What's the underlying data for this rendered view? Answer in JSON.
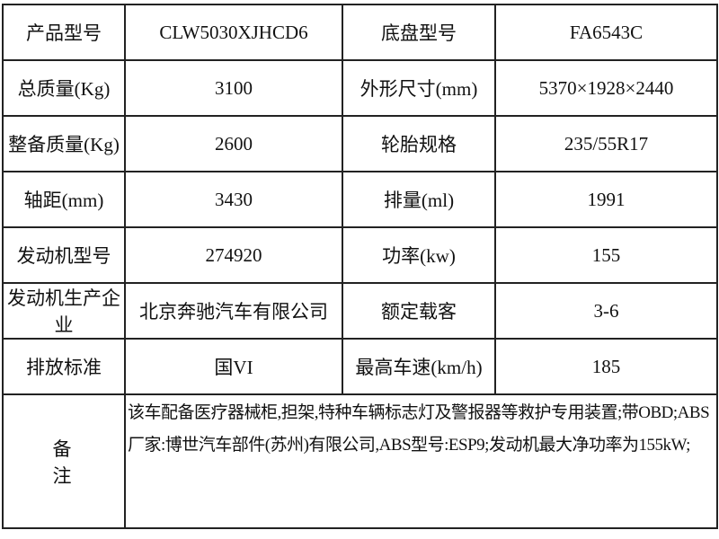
{
  "rows": [
    [
      "产品型号",
      "CLW5030XJHCD6",
      "底盘型号",
      "FA6543C"
    ],
    [
      "总质量(Kg)",
      "3100",
      "外形尺寸(mm)",
      "5370×1928×2440"
    ],
    [
      "整备质量(Kg)",
      "2600",
      "轮胎规格",
      "235/55R17"
    ],
    [
      "轴距(mm)",
      "3430",
      "排量(ml)",
      "1991"
    ],
    [
      "发动机型号",
      "274920",
      "功率(kw)",
      "155"
    ],
    [
      "发动机生产企业",
      "北京奔驰汽车有限公司",
      "额定载客",
      "3-6"
    ],
    [
      "排放标准",
      "国VI",
      "最高车速(km/h)",
      "185"
    ]
  ],
  "note": {
    "label": "备注",
    "text": "该车配备医疗器械柜,担架,特种车辆标志灯及警报器等救护专用装置;带OBD;ABS厂家:博世汽车部件(苏州)有限公司,ABS型号:ESP9;发动机最大净功率为155kW;"
  }
}
